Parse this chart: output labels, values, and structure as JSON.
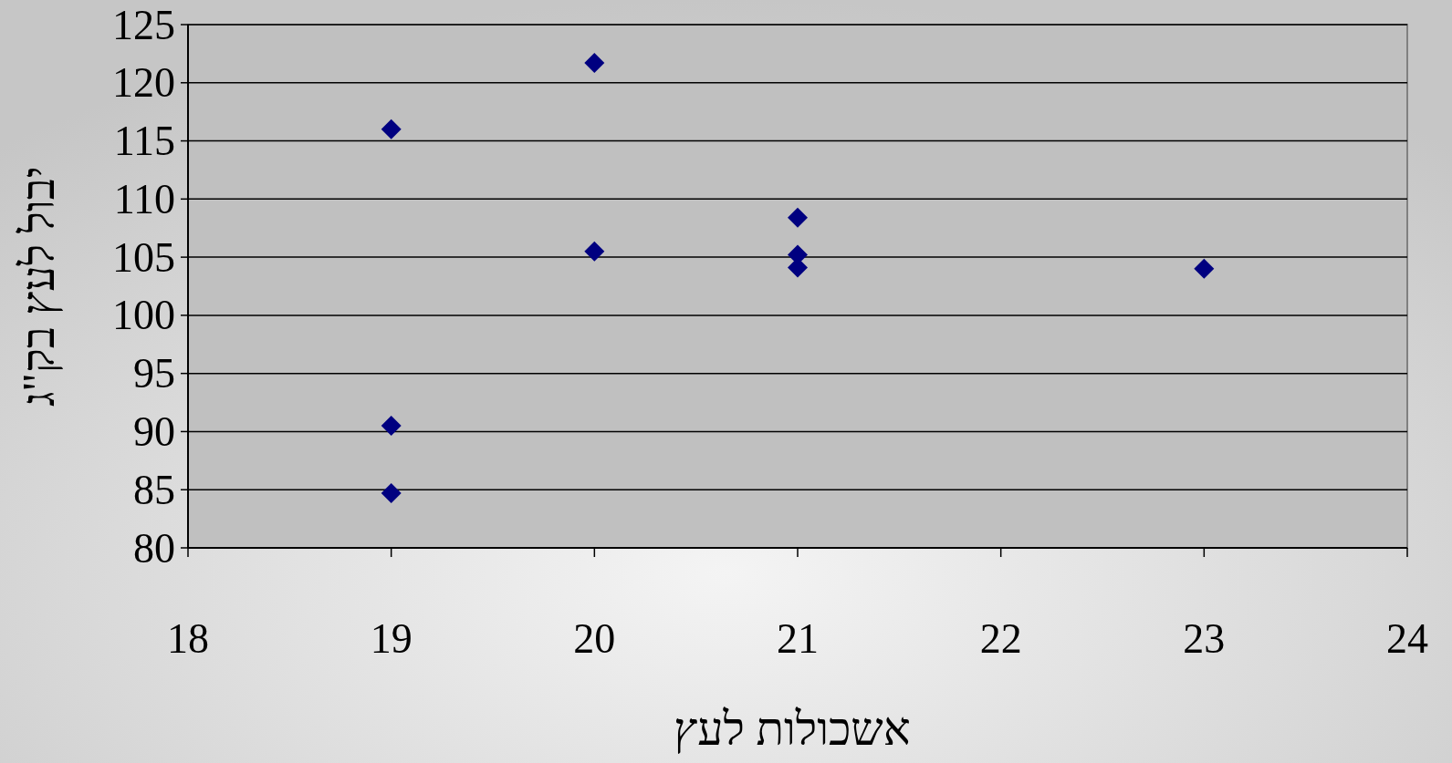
{
  "chart_data": {
    "type": "scatter",
    "xlabel": "אשכולות לעץ",
    "ylabel": "יבול לעץ בק\"ג",
    "x": [
      19,
      19,
      19,
      20,
      20,
      21,
      21,
      21,
      23
    ],
    "series": [
      {
        "color": "#000080",
        "values": [
          116.0,
          90.5,
          84.7,
          121.7,
          105.5,
          108.4,
          105.2,
          104.1,
          104.0
        ]
      }
    ],
    "xlim": [
      18,
      24
    ],
    "xticks": [
      18,
      19,
      20,
      21,
      22,
      23,
      24
    ],
    "ylim": [
      80,
      125
    ],
    "yticks": [
      80,
      85,
      90,
      95,
      100,
      105,
      110,
      115,
      120,
      125
    ],
    "grid": "y",
    "marker": "diamond"
  }
}
